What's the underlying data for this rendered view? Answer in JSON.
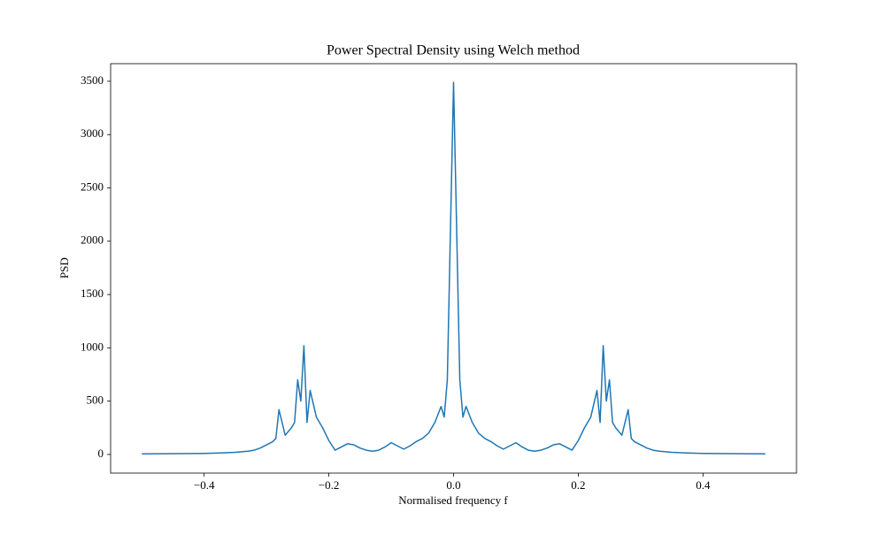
{
  "chart_data": {
    "type": "line",
    "title": "Power Spectral Density using Welch method",
    "xlabel": "Normalised frequency f",
    "ylabel": "PSD",
    "x": [
      -0.5,
      -0.45,
      -0.4,
      -0.37,
      -0.35,
      -0.33,
      -0.32,
      -0.31,
      -0.3,
      -0.29,
      -0.285,
      -0.28,
      -0.27,
      -0.26,
      -0.255,
      -0.25,
      -0.245,
      -0.24,
      -0.235,
      -0.23,
      -0.22,
      -0.21,
      -0.2,
      -0.19,
      -0.18,
      -0.17,
      -0.16,
      -0.15,
      -0.14,
      -0.13,
      -0.12,
      -0.11,
      -0.1,
      -0.09,
      -0.08,
      -0.07,
      -0.06,
      -0.05,
      -0.04,
      -0.03,
      -0.02,
      -0.015,
      -0.01,
      -0.005,
      0,
      0.005,
      0.01,
      0.015,
      0.02,
      0.03,
      0.04,
      0.05,
      0.06,
      0.07,
      0.08,
      0.09,
      0.1,
      0.11,
      0.12,
      0.13,
      0.14,
      0.15,
      0.16,
      0.17,
      0.18,
      0.19,
      0.2,
      0.21,
      0.22,
      0.23,
      0.235,
      0.24,
      0.245,
      0.25,
      0.255,
      0.26,
      0.27,
      0.28,
      0.285,
      0.29,
      0.3,
      0.31,
      0.32,
      0.33,
      0.35,
      0.37,
      0.4,
      0.45,
      0.5
    ],
    "series": [
      {
        "color": "#1f77b4",
        "values": [
          5,
          8,
          10,
          15,
          20,
          30,
          40,
          60,
          90,
          120,
          150,
          420,
          180,
          250,
          300,
          700,
          500,
          1020,
          300,
          600,
          350,
          250,
          130,
          40,
          70,
          100,
          90,
          60,
          40,
          30,
          40,
          70,
          110,
          80,
          50,
          80,
          120,
          150,
          200,
          300,
          450,
          350,
          700,
          2100,
          3490,
          2100,
          700,
          350,
          450,
          300,
          200,
          150,
          120,
          80,
          50,
          80,
          110,
          70,
          40,
          30,
          40,
          60,
          90,
          100,
          70,
          40,
          130,
          250,
          350,
          600,
          300,
          1020,
          500,
          700,
          300,
          250,
          180,
          420,
          150,
          120,
          90,
          60,
          40,
          30,
          20,
          15,
          10,
          8,
          5
        ]
      }
    ],
    "xlim": [
      -0.55,
      0.55
    ],
    "ylim": [
      -175,
      3665
    ],
    "xticks": [
      {
        "value": -0.4,
        "label": "−0.4"
      },
      {
        "value": -0.2,
        "label": "−0.2"
      },
      {
        "value": 0,
        "label": "0.0"
      },
      0.2,
      0.4
    ],
    "yticks": [
      0,
      500,
      1000,
      1500,
      2000,
      2500,
      3000,
      3500
    ]
  }
}
